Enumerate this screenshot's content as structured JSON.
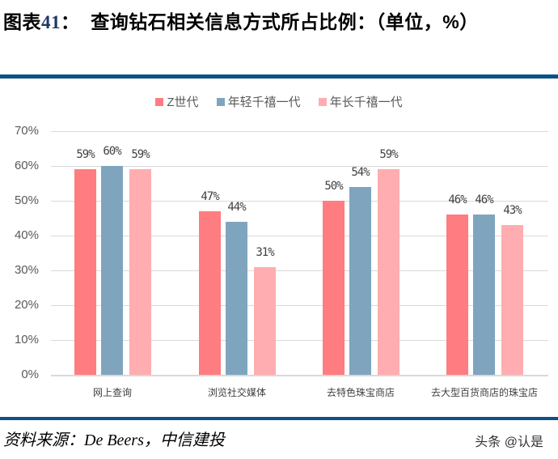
{
  "header": {
    "prefix": "图表",
    "number": "41",
    "colon": "：",
    "title": "查询钻石相关信息方式所占比例：（单位，%）"
  },
  "legend": [
    {
      "label": "Z世代",
      "color": "#ff7c80"
    },
    {
      "label": "年轻千禧一代",
      "color": "#7fa5be"
    },
    {
      "label": "年长千禧一代",
      "color": "#ffadb0"
    }
  ],
  "y_ticks": [
    "70%",
    "60%",
    "50%",
    "40%",
    "30%",
    "20%",
    "10%",
    "0%"
  ],
  "footer": {
    "source": "资料来源：De Beers，中信建投",
    "watermark": "头条 @认是"
  },
  "chart_data": {
    "type": "bar",
    "title": "查询钻石相关信息方式所占比例：（单位，%）",
    "xlabel": "",
    "ylabel": "",
    "ylim": [
      0,
      70
    ],
    "grid": true,
    "legend_position": "top",
    "categories": [
      "网上查询",
      "浏览社交媒体",
      "去特色珠宝商店",
      "去大型百货商店的珠宝店"
    ],
    "series": [
      {
        "name": "Z世代",
        "values": [
          59,
          47,
          50,
          46
        ],
        "color": "#ff7c80"
      },
      {
        "name": "年轻千禧一代",
        "values": [
          60,
          44,
          54,
          46
        ],
        "color": "#7fa5be"
      },
      {
        "name": "年长千禧一代",
        "values": [
          59,
          31,
          59,
          43
        ],
        "color": "#ffadb0"
      }
    ],
    "value_labels": [
      [
        "59%",
        "47%",
        "50%",
        "46%"
      ],
      [
        "60%",
        "44%",
        "54%",
        "46%"
      ],
      [
        "59%",
        "31%",
        "59%",
        "43%"
      ]
    ]
  }
}
